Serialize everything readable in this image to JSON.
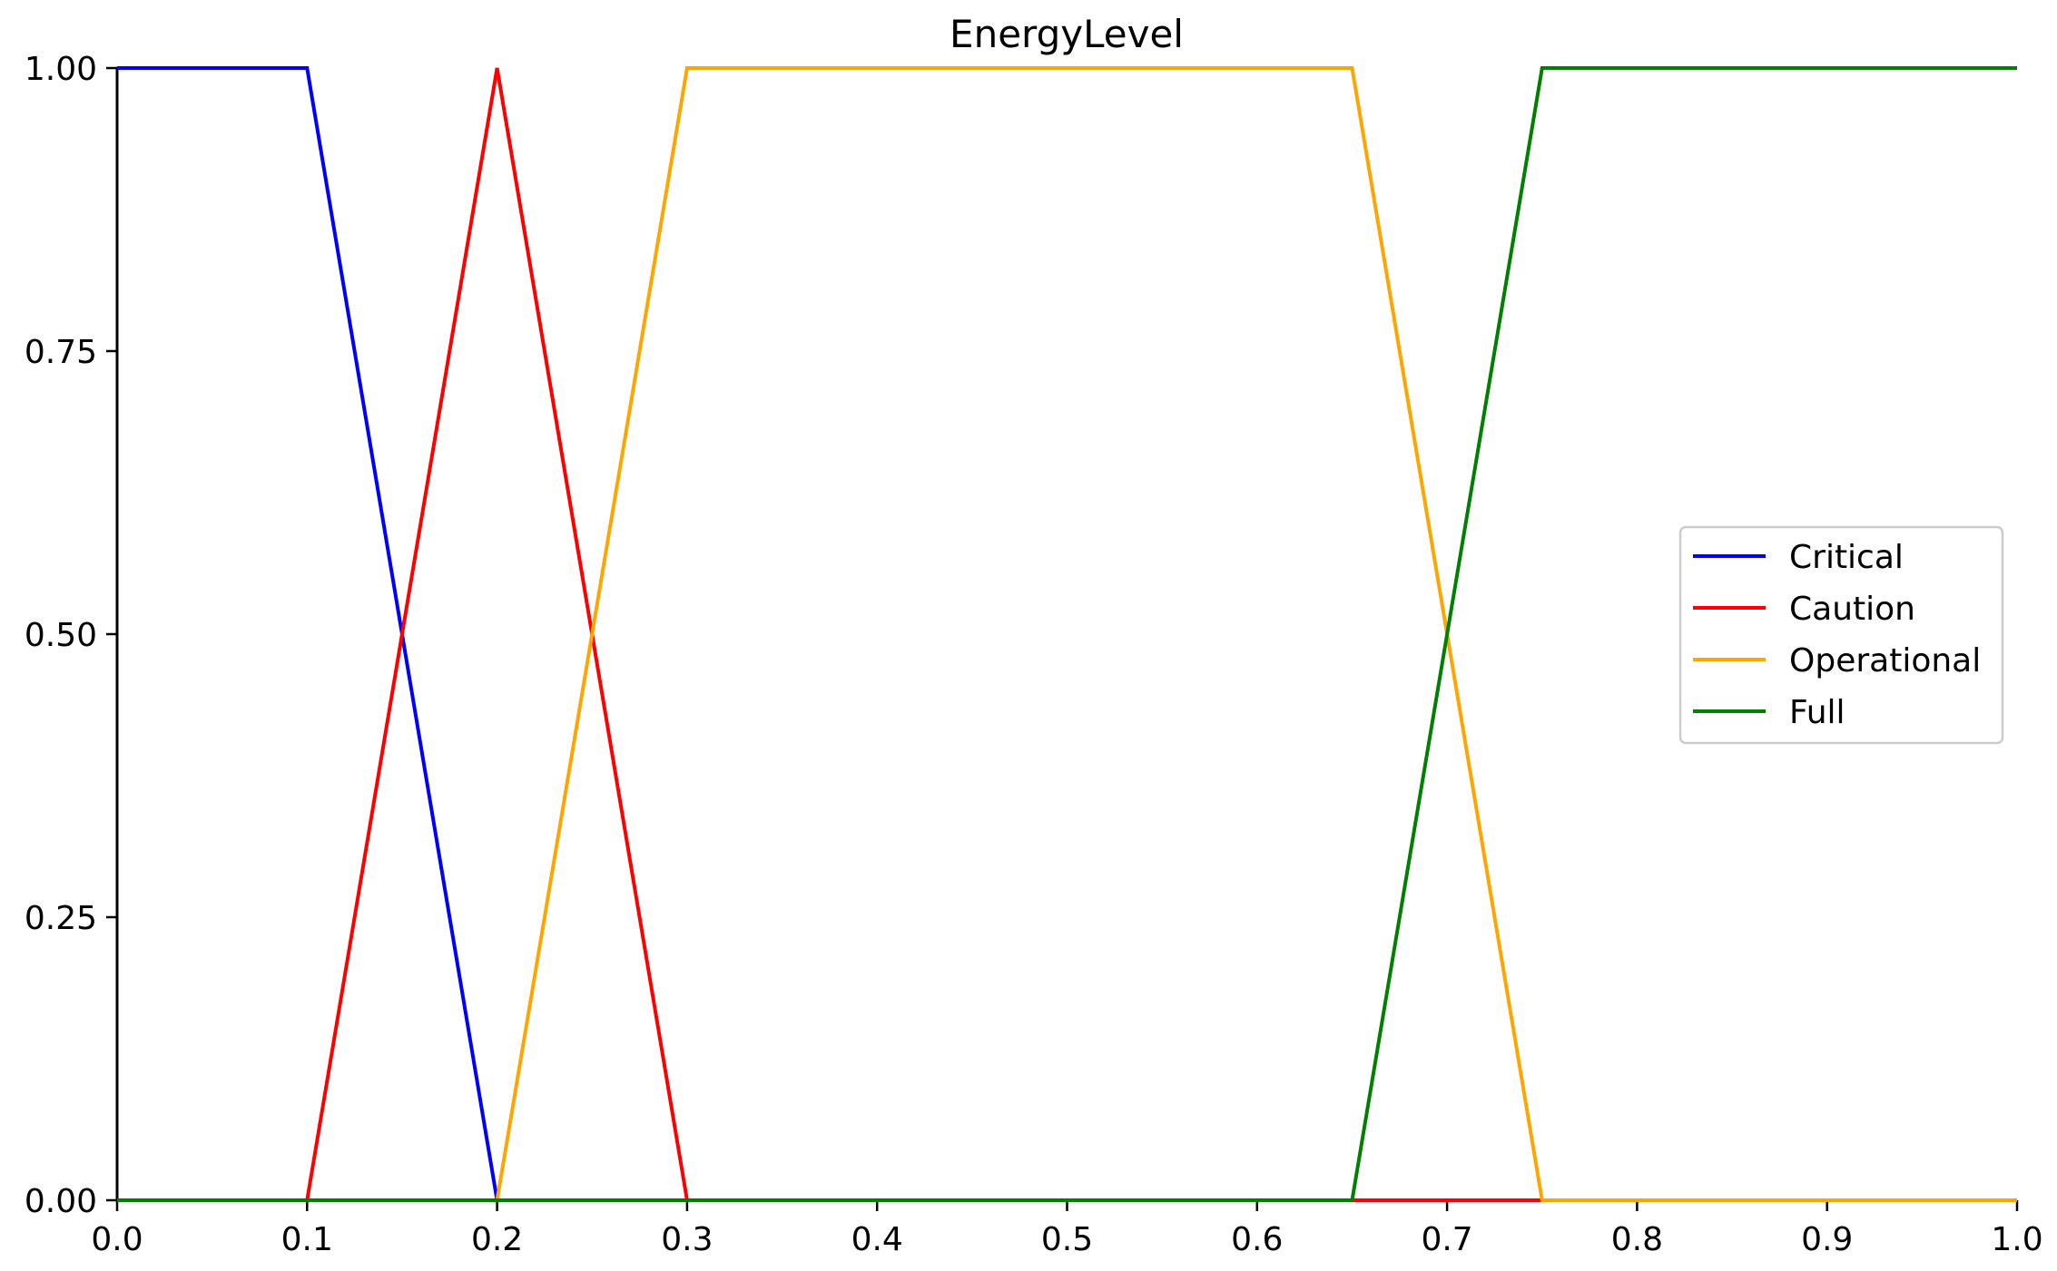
{
  "chart_data": {
    "type": "line",
    "title": "EnergyLevel",
    "xlabel": "",
    "ylabel": "",
    "xlim": [
      0.0,
      1.0
    ],
    "ylim": [
      0.0,
      1.0
    ],
    "x_ticks": [
      "0.0",
      "0.1",
      "0.2",
      "0.3",
      "0.4",
      "0.5",
      "0.6",
      "0.7",
      "0.8",
      "0.9",
      "1.0"
    ],
    "y_ticks": [
      "0.00",
      "0.25",
      "0.50",
      "0.75",
      "1.00"
    ],
    "grid": false,
    "legend_position": "center-right",
    "series": [
      {
        "name": "Critical",
        "color": "#0000ff",
        "x": [
          0.0,
          0.1,
          0.2,
          1.0
        ],
        "y": [
          1.0,
          1.0,
          0.0,
          0.0
        ]
      },
      {
        "name": "Caution",
        "color": "#ff0000",
        "x": [
          0.0,
          0.1,
          0.2,
          0.3,
          1.0
        ],
        "y": [
          0.0,
          0.0,
          1.0,
          0.0,
          0.0
        ]
      },
      {
        "name": "Operational",
        "color": "#ffa500",
        "x": [
          0.0,
          0.2,
          0.3,
          0.65,
          0.75,
          1.0
        ],
        "y": [
          0.0,
          0.0,
          1.0,
          1.0,
          0.0,
          0.0
        ]
      },
      {
        "name": "Full",
        "color": "#008000",
        "x": [
          0.0,
          0.65,
          0.75,
          1.0
        ],
        "y": [
          0.0,
          0.0,
          1.0,
          1.0
        ]
      }
    ]
  }
}
